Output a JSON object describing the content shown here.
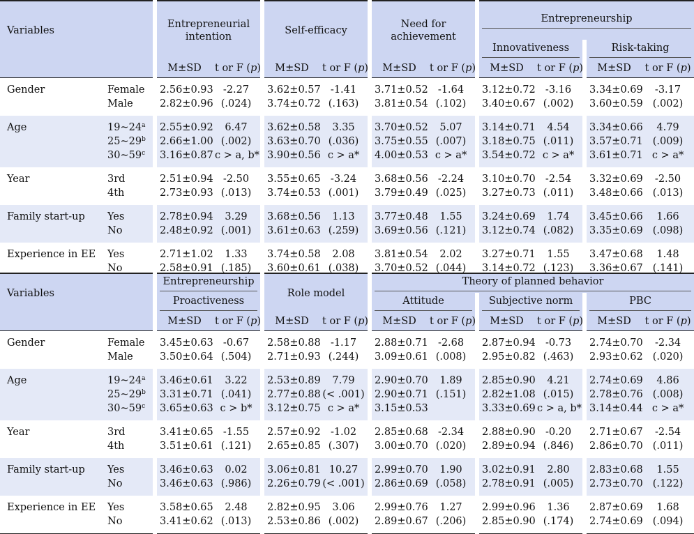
{
  "table1": {
    "header": {
      "variables": "Variables",
      "groups": [
        "Entrepreneurial intention",
        "Self-efficacy",
        "Need for achievement",
        "Entrepreneurship"
      ],
      "subgroups": [
        "Innovativeness",
        "Risk-taking"
      ],
      "msd": "M±SD",
      "tf": "t or F (p)"
    },
    "rows": [
      {
        "variable": "Gender",
        "levels": [
          "Female",
          "Male"
        ],
        "cells": [
          [
            "2.56±0.93\n2.82±0.96",
            "-2.27\n(.024)"
          ],
          [
            "3.62±0.57\n3.74±0.72",
            "-1.41\n(.163)"
          ],
          [
            "3.71±0.52\n3.81±0.54",
            "-1.64\n(.102)"
          ],
          [
            "3.12±0.72\n3.40±0.67",
            "-3.16\n(.002)"
          ],
          [
            "3.34±0.69\n3.60±0.59",
            "-3.17\n(.002)"
          ]
        ]
      },
      {
        "variable": "Age",
        "levels": [
          "19~24",
          "25~29",
          "30~59"
        ],
        "sups": [
          "a",
          "b",
          "c"
        ],
        "cells": [
          [
            "2.55±0.92\n2.66±1.00\n3.16±0.87",
            "6.47\n(.002)\nc > a, b*"
          ],
          [
            "3.62±0.58\n3.63±0.70\n3.90±0.56",
            "3.35\n(.036)\nc > a*"
          ],
          [
            "3.70±0.52\n3.75±0.55\n4.00±0.53",
            "5.07\n(.007)\nc > a*"
          ],
          [
            "3.14±0.71\n3.18±0.75\n3.54±0.72",
            "4.54\n(.011)\nc > a*"
          ],
          [
            "3.34±0.66\n3.57±0.71\n3.61±0.71",
            "4.79\n(.009)\nc > a*"
          ]
        ]
      },
      {
        "variable": "Year",
        "levels": [
          "3rd",
          "4th"
        ],
        "cells": [
          [
            "2.51±0.94\n2.73±0.93",
            "-2.50\n(.013)"
          ],
          [
            "3.55±0.65\n3.74±0.53",
            "-3.24\n(.001)"
          ],
          [
            "3.68±0.56\n3.79±0.49",
            "-2.24\n(.025)"
          ],
          [
            "3.10±0.70\n3.27±0.73",
            "-2.54\n(.011)"
          ],
          [
            "3.32±0.69\n3.48±0.66",
            "-2.50\n(.013)"
          ]
        ]
      },
      {
        "variable": "Family start-up",
        "levels": [
          "Yes",
          "No"
        ],
        "cells": [
          [
            "2.78±0.94\n2.48±0.92",
            "3.29\n(.001)"
          ],
          [
            "3.68±0.56\n3.61±0.63",
            "1.13\n(.259)"
          ],
          [
            "3.77±0.48\n3.69±0.56",
            "1.55\n(.121)"
          ],
          [
            "3.24±0.69\n3.12±0.74",
            "1.74\n(.082)"
          ],
          [
            "3.45±0.66\n3.35±0.69",
            "1.66\n(.098)"
          ]
        ]
      },
      {
        "variable": "Experience in EE",
        "levels": [
          "Yes",
          "No"
        ],
        "cells": [
          [
            "2.71±1.02\n2.58±0.91",
            "1.33\n(.185)"
          ],
          [
            "3.74±0.58\n3.60±0.61",
            "2.08\n(.038)"
          ],
          [
            "3.81±0.54\n3.70±0.52",
            "2.02\n(.044)"
          ],
          [
            "3.27±0.71\n3.14±0.72",
            "1.55\n(.123)"
          ],
          [
            "3.47±0.68\n3.36±0.67",
            "1.48\n(.141)"
          ]
        ]
      }
    ]
  },
  "table2": {
    "header": {
      "variables": "Variables",
      "group_entrepreneurship": "Entrepreneurship",
      "sub_proactiveness": "Proactiveness",
      "role_model": "Role model",
      "tpb": "Theory of planned behavior",
      "subgroups": [
        "Attitude",
        "Subjective norm",
        "PBC"
      ],
      "msd": "M±SD",
      "tf": "t or F (p)"
    },
    "rows": [
      {
        "variable": "Gender",
        "levels": [
          "Female",
          "Male"
        ],
        "cells": [
          [
            "3.45±0.63\n3.50±0.64",
            "-0.67\n(.504)"
          ],
          [
            "2.58±0.88\n2.71±0.93",
            "-1.17\n(.244)"
          ],
          [
            "2.88±0.71\n3.09±0.61",
            "-2.68\n(.008)"
          ],
          [
            "2.87±0.94\n2.95±0.82",
            "-0.73\n(.463)"
          ],
          [
            "2.74±0.70\n2.93±0.62",
            "-2.34\n(.020)"
          ]
        ]
      },
      {
        "variable": "Age",
        "levels": [
          "19~24",
          "25~29",
          "30~59"
        ],
        "sups": [
          "a",
          "b",
          "c"
        ],
        "cells": [
          [
            "3.46±0.61\n3.31±0.71\n3.65±0.63",
            "3.22\n(.041)\nc > b*"
          ],
          [
            "2.53±0.89\n2.77±0.88\n3.12±0.75",
            "7.79\n(< .001)\nc > a*"
          ],
          [
            "2.90±0.70\n2.90±0.71\n3.15±0.53",
            "1.89\n(.151)"
          ],
          [
            "2.85±0.90\n2.82±1.08\n3.33±0.69",
            "4.21\n(.015)\nc > a, b*"
          ],
          [
            "2.74±0.69\n2.78±0.76\n3.14±0.44",
            "4.86\n(.008)\nc > a*"
          ]
        ]
      },
      {
        "variable": "Year",
        "levels": [
          "3rd",
          "4th"
        ],
        "cells": [
          [
            "3.41±0.65\n3.51±0.61",
            "-1.55\n(.121)"
          ],
          [
            "2.57±0.92\n2.65±0.85",
            "-1.02\n(.307)"
          ],
          [
            "2.85±0.68\n3.00±0.70",
            "-2.34\n(.020)"
          ],
          [
            "2.88±0.90\n2.89±0.94",
            "-0.20\n(.846)"
          ],
          [
            "2.71±0.67\n2.86±0.70",
            "-2.54\n(.011)"
          ]
        ]
      },
      {
        "variable": "Family start-up",
        "levels": [
          "Yes",
          "No"
        ],
        "cells": [
          [
            "3.46±0.63\n3.46±0.63",
            "0.02\n(.986)"
          ],
          [
            "3.06±0.81\n2.26±0.79",
            "10.27\n(< .001)"
          ],
          [
            "2.99±0.70\n2.86±0.69",
            "1.90\n(.058)"
          ],
          [
            "3.02±0.91\n2.78±0.91",
            "2.80\n(.005)"
          ],
          [
            "2.83±0.68\n2.73±0.70",
            "1.55\n(.122)"
          ]
        ]
      },
      {
        "variable": "Experience in EE",
        "levels": [
          "Yes",
          "No"
        ],
        "cells": [
          [
            "3.58±0.65\n3.41±0.62",
            "2.48\n(.013)"
          ],
          [
            "2.82±0.95\n2.53±0.86",
            "3.06\n(.002)"
          ],
          [
            "2.99±0.76\n2.89±0.67",
            "1.27\n(.206)"
          ],
          [
            "2.99±0.96\n2.85±0.90",
            "1.36\n(.174)"
          ],
          [
            "2.87±0.69\n2.74±0.69",
            "1.68\n(.094)"
          ]
        ]
      }
    ]
  }
}
